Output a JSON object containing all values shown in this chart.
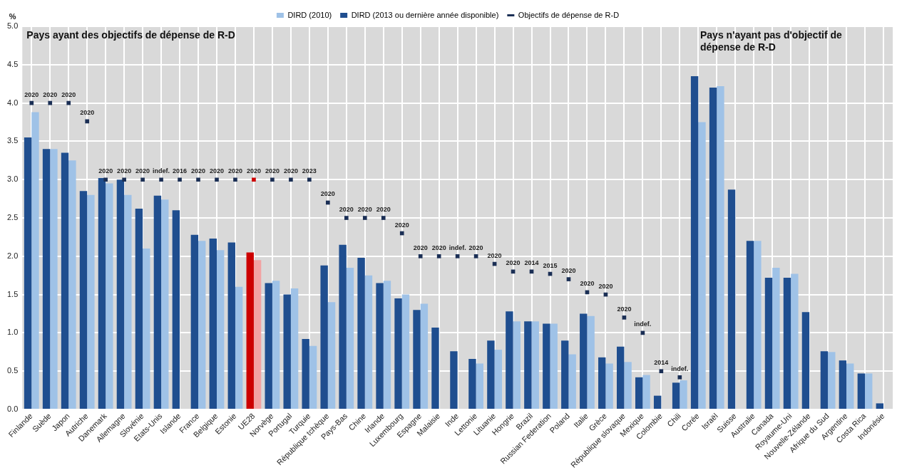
{
  "chart_data": {
    "type": "bar",
    "ylabel": "%",
    "legend": "top",
    "grid": true,
    "categories": [
      "Finlande",
      "Suède",
      "Japon",
      "Autriche",
      "Danemark",
      "Allemagne",
      "Slovénie",
      "Etats-Unis",
      "Islande",
      "France",
      "Belgique",
      "Estonie",
      "UE28",
      "Norvège",
      "Portugal",
      "Turquie",
      "République tchèque",
      "Pays-Bas",
      "Chine",
      "Irlande",
      "Luxembourg",
      "Espagne",
      "Malaisie",
      "Inde",
      "Lettonie",
      "Lituanie",
      "Hongrie",
      "Brazil",
      "Russian Federation",
      "Poland",
      "Italie",
      "Grèce",
      "République slovaque",
      "Mexique",
      "Colombie",
      "Chili",
      "Corée",
      "Israël",
      "Suisse",
      "Australie",
      "Canada",
      "Royaume-Uni",
      "Nouvelle-Zélande",
      "Afrique du Sud",
      "Argentine",
      "Costa Rica",
      "Indonésie"
    ],
    "ylim": [
      0,
      5
    ],
    "yticks": [
      {
        "value": 0,
        "label": "0.0"
      },
      {
        "value": 0.5,
        "label": "0.5"
      },
      {
        "value": 1,
        "label": "1.0"
      },
      {
        "value": 1.5,
        "label": "1.5"
      },
      {
        "value": 2,
        "label": "2.0"
      },
      {
        "value": 2.5,
        "label": "2.5"
      },
      {
        "value": 3,
        "label": "3.0"
      },
      {
        "value": 3.5,
        "label": "3.5"
      },
      {
        "value": 4,
        "label": "4.0"
      },
      {
        "value": 4.5,
        "label": "4.5"
      },
      {
        "value": 5,
        "label": "5.0"
      }
    ],
    "series": [
      {
        "name": "DIRD (2010)",
        "color": "#9fc2e7",
        "colors": [
          "#9fc2e7",
          "#9fc2e7",
          "#9fc2e7",
          "#9fc2e7",
          "#9fc2e7",
          "#9fc2e7",
          "#9fc2e7",
          "#9fc2e7",
          "#9fc2e7",
          "#9fc2e7",
          "#9fc2e7",
          "#9fc2e7",
          "#f2a3a3",
          "#9fc2e7",
          "#9fc2e7",
          "#9fc2e7",
          "#9fc2e7",
          "#9fc2e7",
          "#9fc2e7",
          "#9fc2e7",
          "#9fc2e7",
          "#9fc2e7",
          "#9fc2e7",
          "#9fc2e7",
          "#9fc2e7",
          "#9fc2e7",
          "#9fc2e7",
          "#9fc2e7",
          "#9fc2e7",
          "#9fc2e7",
          "#9fc2e7",
          "#9fc2e7",
          "#9fc2e7",
          "#9fc2e7",
          "#9fc2e7",
          "#9fc2e7",
          "#9fc2e7",
          "#9fc2e7",
          "#9fc2e7",
          "#9fc2e7",
          "#9fc2e7",
          "#9fc2e7",
          "#9fc2e7",
          "#9fc2e7",
          "#9fc2e7",
          "#9fc2e7",
          "#9fc2e7"
        ],
        "values": [
          3.88,
          3.4,
          3.25,
          2.8,
          2.95,
          2.8,
          2.1,
          2.74,
          null,
          2.2,
          2.08,
          1.6,
          1.95,
          1.68,
          1.58,
          0.83,
          1.4,
          1.85,
          1.75,
          1.68,
          1.5,
          1.38,
          null,
          null,
          0.6,
          0.78,
          1.15,
          1.15,
          1.12,
          0.72,
          1.22,
          0.6,
          0.62,
          0.45,
          null,
          0.38,
          3.75,
          4.22,
          null,
          2.2,
          1.85,
          1.77,
          null,
          0.75,
          0.6,
          0.47,
          null
        ]
      },
      {
        "name": "DIRD (2013 ou dernière année disponible)",
        "color": "#1f4e8f",
        "colors": [
          "#1f4e8f",
          "#1f4e8f",
          "#1f4e8f",
          "#1f4e8f",
          "#1f4e8f",
          "#1f4e8f",
          "#1f4e8f",
          "#1f4e8f",
          "#1f4e8f",
          "#1f4e8f",
          "#1f4e8f",
          "#1f4e8f",
          "#cc0000",
          "#1f4e8f",
          "#1f4e8f",
          "#1f4e8f",
          "#1f4e8f",
          "#1f4e8f",
          "#1f4e8f",
          "#1f4e8f",
          "#1f4e8f",
          "#1f4e8f",
          "#1f4e8f",
          "#1f4e8f",
          "#1f4e8f",
          "#1f4e8f",
          "#1f4e8f",
          "#1f4e8f",
          "#1f4e8f",
          "#1f4e8f",
          "#1f4e8f",
          "#1f4e8f",
          "#1f4e8f",
          "#1f4e8f",
          "#1f4e8f",
          "#1f4e8f",
          "#1f4e8f",
          "#1f4e8f",
          "#1f4e8f",
          "#1f4e8f",
          "#1f4e8f",
          "#1f4e8f",
          "#1f4e8f",
          "#1f4e8f",
          "#1f4e8f",
          "#1f4e8f",
          "#1f4e8f"
        ],
        "values": [
          3.55,
          3.4,
          3.35,
          2.85,
          3.02,
          3.0,
          2.62,
          2.79,
          2.6,
          2.28,
          2.23,
          2.18,
          2.05,
          1.65,
          1.5,
          0.92,
          1.88,
          2.15,
          1.98,
          1.65,
          1.45,
          1.3,
          1.07,
          0.76,
          0.66,
          0.9,
          1.28,
          1.15,
          1.12,
          0.9,
          1.25,
          0.68,
          0.82,
          0.42,
          0.18,
          0.35,
          4.35,
          4.2,
          2.87,
          2.2,
          1.72,
          1.72,
          1.27,
          0.76,
          0.64,
          0.47,
          0.08
        ]
      },
      {
        "name": "Objectifs de dépense de R-D",
        "type": "scatter",
        "marker": "square",
        "color": "#1b2f55",
        "colors": [
          "#1b2f55",
          "#1b2f55",
          "#1b2f55",
          "#1b2f55",
          "#1b2f55",
          "#1b2f55",
          "#1b2f55",
          "#1b2f55",
          "#1b2f55",
          "#1b2f55",
          "#1b2f55",
          "#1b2f55",
          "#cc0000",
          "#1b2f55",
          "#1b2f55",
          "#1b2f55",
          "#1b2f55",
          "#1b2f55",
          "#1b2f55",
          "#1b2f55",
          "#1b2f55",
          "#1b2f55",
          "#1b2f55",
          "#1b2f55",
          "#1b2f55",
          "#1b2f55",
          "#1b2f55",
          "#1b2f55",
          "#1b2f55",
          "#1b2f55",
          "#1b2f55",
          "#1b2f55",
          "#1b2f55",
          "#1b2f55",
          "#1b2f55",
          "#1b2f55"
        ],
        "x": [
          "Finlande",
          "Suède",
          "Japon",
          "Autriche",
          "Danemark",
          "Allemagne",
          "Slovénie",
          "Etats-Unis",
          "Islande",
          "France",
          "Belgique",
          "Estonie",
          "UE28",
          "Norvège",
          "Portugal",
          "Turquie",
          "République tchèque",
          "Pays-Bas",
          "Chine",
          "Irlande",
          "Luxembourg",
          "Espagne",
          "Malaisie",
          "Inde",
          "Lettonie",
          "Lituanie",
          "Hongrie",
          "Brazil",
          "Russian Federation",
          "Poland",
          "Italie",
          "Grèce",
          "République slovaque",
          "Mexique",
          "Colombie",
          "Chili"
        ],
        "values": [
          4,
          4,
          4,
          3.76,
          3,
          3,
          3,
          3,
          3,
          3,
          3,
          3,
          3,
          3,
          3,
          3,
          2.7,
          2.5,
          2.5,
          2.5,
          2.3,
          2,
          2,
          2,
          2,
          1.9,
          1.8,
          1.8,
          1.77,
          1.7,
          1.53,
          1.5,
          1.2,
          1,
          0.5,
          0.42
        ]
      }
    ],
    "annotations": [
      "Pays ayant des objectifs de dépense de R-D",
      "Pays n'ayant pas d'objectif de dépense de R-D",
      {
        "text": "2020",
        "x": "Finlande",
        "y": 4
      },
      {
        "text": "2020",
        "x": "Suède",
        "y": 4
      },
      {
        "text": "2020",
        "x": "Japon",
        "y": 4
      },
      {
        "text": "2020",
        "x": "Autriche",
        "y": 3.76
      },
      {
        "text": "2020",
        "x": "Danemark",
        "y": 3
      },
      {
        "text": "2020",
        "x": "Allemagne",
        "y": 3
      },
      {
        "text": "2020",
        "x": "Slovénie",
        "y": 3
      },
      {
        "text": "indef.",
        "x": "Etats-Unis",
        "y": 3
      },
      {
        "text": "2016",
        "x": "Islande",
        "y": 3
      },
      {
        "text": "2020",
        "x": "France",
        "y": 3
      },
      {
        "text": "2020",
        "x": "Belgique",
        "y": 3
      },
      {
        "text": "2020",
        "x": "Estonie",
        "y": 3
      },
      {
        "text": "2020",
        "x": "UE28",
        "y": 3
      },
      {
        "text": "2020",
        "x": "Norvège",
        "y": 3
      },
      {
        "text": "2020",
        "x": "Portugal",
        "y": 3
      },
      {
        "text": "2023",
        "x": "Turquie",
        "y": 3
      },
      {
        "text": "2020",
        "x": "République tchèque",
        "y": 2.7
      },
      {
        "text": "2020",
        "x": "Pays-Bas",
        "y": 2.5
      },
      {
        "text": "2020",
        "x": "Chine",
        "y": 2.5
      },
      {
        "text": "2020",
        "x": "Irlande",
        "y": 2.5
      },
      {
        "text": "2020",
        "x": "Luxembourg",
        "y": 2.3
      },
      {
        "text": "2020",
        "x": "Espagne",
        "y": 2
      },
      {
        "text": "2020",
        "x": "Malaisie",
        "y": 2
      },
      {
        "text": "indef.",
        "x": "Inde",
        "y": 2
      },
      {
        "text": "2020",
        "x": "Lettonie",
        "y": 2
      },
      {
        "text": "2020",
        "x": "Lituanie",
        "y": 1.9
      },
      {
        "text": "2020",
        "x": "Hongrie",
        "y": 1.8
      },
      {
        "text": "2014",
        "x": "Brazil",
        "y": 1.8
      },
      {
        "text": "2015",
        "x": "Russian Federation",
        "y": 1.77
      },
      {
        "text": "2020",
        "x": "Poland",
        "y": 1.7
      },
      {
        "text": "2020",
        "x": "Italie",
        "y": 1.53
      },
      {
        "text": "2020",
        "x": "Grèce",
        "y": 1.5
      },
      {
        "text": "2020",
        "x": "République slovaque",
        "y": 1.2
      },
      {
        "text": "indef.",
        "x": "Mexique",
        "y": 1
      },
      {
        "text": "2014",
        "x": "Colombie",
        "y": 0.5
      },
      {
        "text": "indef.",
        "x": "Chili",
        "y": 0.42
      }
    ]
  }
}
